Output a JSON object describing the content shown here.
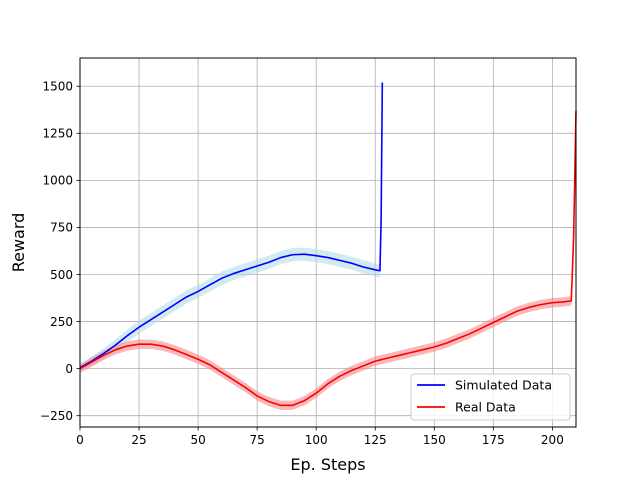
{
  "chart_data": {
    "type": "line",
    "title": "",
    "xlabel": "Ep. Steps",
    "ylabel": "Reward",
    "xlim": [
      0,
      210
    ],
    "ylim": [
      -310,
      1650
    ],
    "xticks": [
      0,
      25,
      50,
      75,
      100,
      125,
      150,
      175,
      200
    ],
    "yticks": [
      -250,
      0,
      250,
      500,
      750,
      1000,
      1250,
      1500
    ],
    "grid": true,
    "legend_position": "lower-right",
    "series": [
      {
        "name": "Simulated Data",
        "color": "#0000ff",
        "band_color": "#add8e6",
        "x": [
          0,
          5,
          10,
          15,
          20,
          25,
          30,
          35,
          40,
          45,
          50,
          55,
          60,
          65,
          70,
          75,
          80,
          85,
          90,
          95,
          100,
          105,
          110,
          115,
          120,
          125,
          127,
          127.5,
          128
        ],
        "y": [
          5,
          40,
          80,
          125,
          175,
          220,
          260,
          300,
          340,
          380,
          410,
          445,
          480,
          505,
          525,
          545,
          565,
          590,
          605,
          608,
          600,
          590,
          575,
          560,
          540,
          525,
          520,
          800,
          1520
        ],
        "band": [
          20,
          25,
          28,
          30,
          32,
          35,
          35,
          35,
          35,
          35,
          35,
          35,
          35,
          35,
          35,
          35,
          35,
          35,
          35,
          35,
          35,
          35,
          35,
          35,
          35,
          35,
          35,
          40,
          45
        ]
      },
      {
        "name": "Real Data",
        "color": "#ff0000",
        "band_color": "#f08080",
        "x": [
          0,
          5,
          10,
          15,
          20,
          25,
          30,
          35,
          40,
          45,
          50,
          55,
          60,
          65,
          70,
          75,
          80,
          85,
          90,
          95,
          100,
          105,
          110,
          115,
          120,
          125,
          130,
          135,
          140,
          145,
          150,
          155,
          160,
          165,
          170,
          175,
          180,
          185,
          190,
          195,
          200,
          205,
          208,
          209,
          210
        ],
        "y": [
          0,
          35,
          70,
          100,
          120,
          130,
          130,
          120,
          100,
          75,
          50,
          20,
          -20,
          -60,
          -100,
          -145,
          -175,
          -195,
          -195,
          -170,
          -130,
          -80,
          -40,
          -10,
          15,
          40,
          55,
          70,
          85,
          100,
          115,
          135,
          160,
          185,
          215,
          245,
          275,
          305,
          325,
          340,
          350,
          355,
          360,
          700,
          1370
        ],
        "band": [
          22,
          25,
          25,
          25,
          25,
          25,
          25,
          25,
          25,
          25,
          25,
          25,
          25,
          25,
          25,
          25,
          25,
          25,
          25,
          25,
          25,
          25,
          25,
          25,
          25,
          25,
          25,
          25,
          25,
          25,
          25,
          25,
          25,
          25,
          25,
          25,
          25,
          25,
          25,
          25,
          25,
          25,
          25,
          30,
          35
        ]
      }
    ]
  }
}
